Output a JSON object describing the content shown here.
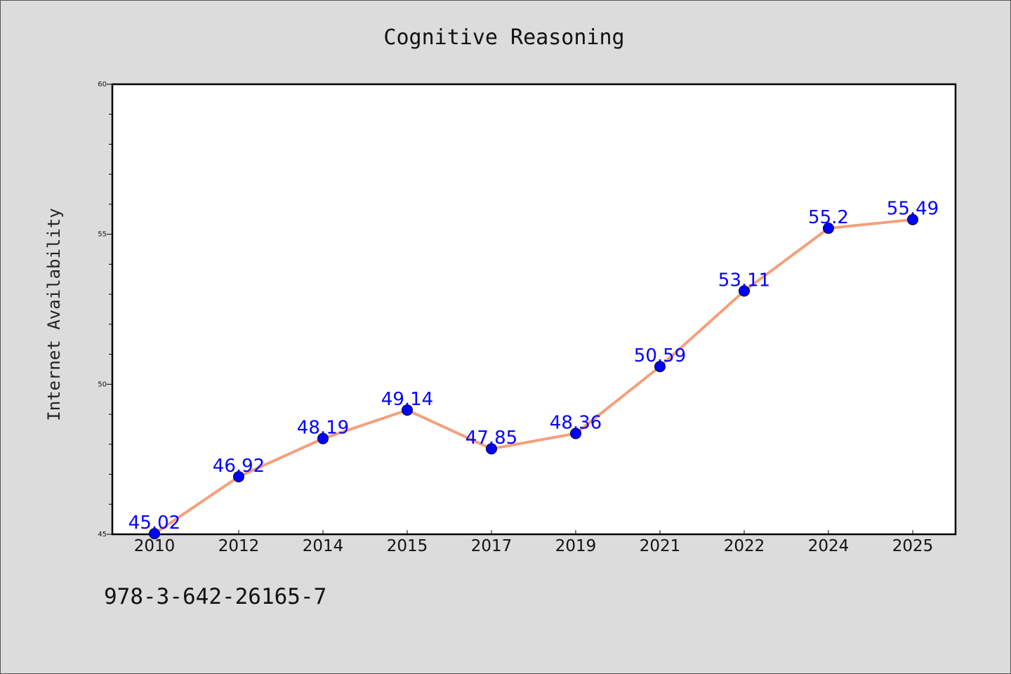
{
  "chart_data": {
    "type": "line",
    "title": "Cognitive Reasoning",
    "ylabel": "Internet Availability",
    "xlabel": "",
    "categories": [
      "2010",
      "2012",
      "2014",
      "2015",
      "2017",
      "2019",
      "2021",
      "2022",
      "2024",
      "2025"
    ],
    "series": [
      {
        "values": [
          45.02,
          46.92,
          48.19,
          49.14,
          47.85,
          48.36,
          50.59,
          53.11,
          55.2,
          55.49
        ],
        "labels": [
          "45.02",
          "46.92",
          "48.19",
          "49.14",
          "47.85",
          "48.36",
          "50.59",
          "53.11",
          "55.2",
          "55.49"
        ]
      }
    ],
    "ylim": [
      45,
      60
    ],
    "yticks": [
      "45",
      "50",
      "55",
      "60"
    ],
    "grid": false,
    "legend": "none",
    "colors": {
      "line": "#f4a07c",
      "marker": "#0000ff",
      "label": "#0000ff"
    }
  },
  "footnote": "978-3-642-26165-7"
}
